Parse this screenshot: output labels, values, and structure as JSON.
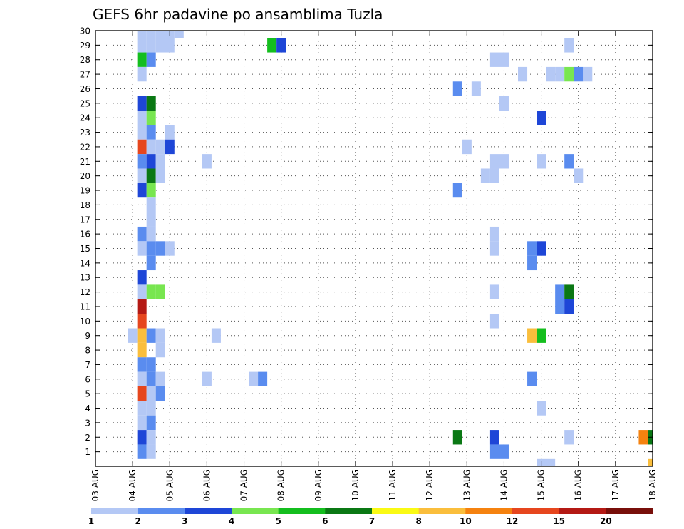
{
  "chart_data": {
    "type": "heatmap",
    "title": "GEFS 6hr padavine po ansamblima Tuzla",
    "xlabel": "",
    "ylabel": "",
    "x_tick_labels": [
      "03 AUG",
      "04 AUG",
      "05 AUG",
      "06 AUG",
      "07 AUG",
      "08 AUG",
      "09 AUG",
      "10 AUG",
      "11 AUG",
      "12 AUG",
      "13 AUG",
      "14 AUG",
      "15 AUG",
      "16 AUG",
      "17 AUG",
      "18 AUG"
    ],
    "y_tick_labels": [
      "1",
      "2",
      "3",
      "4",
      "5",
      "6",
      "7",
      "8",
      "9",
      "10",
      "11",
      "12",
      "13",
      "14",
      "15",
      "16",
      "17",
      "18",
      "19",
      "20",
      "21",
      "22",
      "23",
      "24",
      "25",
      "26",
      "27",
      "28",
      "29",
      "30"
    ],
    "xlim_hours": [
      0,
      360
    ],
    "ylim_member": [
      0,
      30
    ],
    "grid": true,
    "colorbar": {
      "labels": [
        "1",
        "2",
        "3",
        "4",
        "5",
        "6",
        "7",
        "8",
        "10",
        "12",
        "15",
        "20"
      ],
      "colors": [
        "#b4c8f5",
        "#5a8cef",
        "#1e46d7",
        "#78e650",
        "#14be1e",
        "#0a7814",
        "#fafa14",
        "#fabe3c",
        "#f5820f",
        "#e6461e",
        "#b41914",
        "#780f0a"
      ]
    },
    "cell_fields": [
      "hour",
      "member",
      "color_index"
    ],
    "cells": [
      [
        30,
        30,
        0
      ],
      [
        36,
        30,
        0
      ],
      [
        42,
        30,
        0
      ],
      [
        48,
        30,
        0
      ],
      [
        54,
        30,
        0
      ],
      [
        30,
        29,
        0
      ],
      [
        36,
        29,
        0
      ],
      [
        42,
        29,
        0
      ],
      [
        48,
        29,
        0
      ],
      [
        114,
        29,
        4
      ],
      [
        120,
        29,
        2
      ],
      [
        306,
        29,
        0
      ],
      [
        30,
        28,
        4
      ],
      [
        36,
        28,
        1
      ],
      [
        258,
        28,
        0
      ],
      [
        264,
        28,
        0
      ],
      [
        30,
        27,
        0
      ],
      [
        276,
        27,
        0
      ],
      [
        294,
        27,
        0
      ],
      [
        300,
        27,
        0
      ],
      [
        306,
        27,
        3
      ],
      [
        312,
        27,
        1
      ],
      [
        318,
        27,
        0
      ],
      [
        234,
        26,
        1
      ],
      [
        246,
        26,
        0
      ],
      [
        30,
        25,
        2
      ],
      [
        36,
        25,
        5
      ],
      [
        264,
        25,
        0
      ],
      [
        30,
        24,
        0
      ],
      [
        36,
        24,
        3
      ],
      [
        288,
        24,
        2
      ],
      [
        30,
        23,
        0
      ],
      [
        36,
        23,
        1
      ],
      [
        48,
        23,
        0
      ],
      [
        30,
        22,
        9
      ],
      [
        36,
        22,
        0
      ],
      [
        42,
        22,
        0
      ],
      [
        48,
        22,
        2
      ],
      [
        240,
        22,
        0
      ],
      [
        30,
        21,
        1
      ],
      [
        36,
        21,
        2
      ],
      [
        42,
        21,
        0
      ],
      [
        72,
        21,
        0
      ],
      [
        258,
        21,
        0
      ],
      [
        264,
        21,
        0
      ],
      [
        288,
        21,
        0
      ],
      [
        306,
        21,
        1
      ],
      [
        30,
        20,
        0
      ],
      [
        36,
        20,
        5
      ],
      [
        42,
        20,
        0
      ],
      [
        252,
        20,
        0
      ],
      [
        258,
        20,
        0
      ],
      [
        312,
        20,
        0
      ],
      [
        30,
        19,
        2
      ],
      [
        36,
        19,
        3
      ],
      [
        234,
        19,
        1
      ],
      [
        36,
        18,
        0
      ],
      [
        36,
        17,
        0
      ],
      [
        30,
        16,
        1
      ],
      [
        36,
        16,
        0
      ],
      [
        258,
        16,
        0
      ],
      [
        30,
        15,
        0
      ],
      [
        36,
        15,
        1
      ],
      [
        42,
        15,
        1
      ],
      [
        48,
        15,
        0
      ],
      [
        258,
        15,
        0
      ],
      [
        282,
        15,
        1
      ],
      [
        288,
        15,
        2
      ],
      [
        36,
        14,
        1
      ],
      [
        282,
        14,
        1
      ],
      [
        30,
        13,
        2
      ],
      [
        30,
        12,
        0
      ],
      [
        36,
        12,
        3
      ],
      [
        42,
        12,
        3
      ],
      [
        258,
        12,
        0
      ],
      [
        300,
        12,
        1
      ],
      [
        306,
        12,
        5
      ],
      [
        30,
        11,
        10
      ],
      [
        300,
        11,
        1
      ],
      [
        306,
        11,
        2
      ],
      [
        30,
        10,
        9
      ],
      [
        258,
        10,
        0
      ],
      [
        24,
        9,
        0
      ],
      [
        30,
        9,
        7
      ],
      [
        36,
        9,
        1
      ],
      [
        42,
        9,
        0
      ],
      [
        78,
        9,
        0
      ],
      [
        282,
        9,
        7
      ],
      [
        288,
        9,
        4
      ],
      [
        30,
        8,
        7
      ],
      [
        42,
        8,
        0
      ],
      [
        30,
        7,
        1
      ],
      [
        36,
        7,
        1
      ],
      [
        30,
        6,
        0
      ],
      [
        36,
        6,
        1
      ],
      [
        42,
        6,
        0
      ],
      [
        72,
        6,
        0
      ],
      [
        102,
        6,
        0
      ],
      [
        108,
        6,
        1
      ],
      [
        282,
        6,
        1
      ],
      [
        30,
        5,
        9
      ],
      [
        36,
        5,
        0
      ],
      [
        42,
        5,
        1
      ],
      [
        30,
        4,
        0
      ],
      [
        36,
        4,
        0
      ],
      [
        288,
        4,
        0
      ],
      [
        30,
        3,
        0
      ],
      [
        36,
        3,
        1
      ],
      [
        30,
        2,
        2
      ],
      [
        36,
        2,
        0
      ],
      [
        234,
        2,
        5
      ],
      [
        258,
        2,
        2
      ],
      [
        306,
        2,
        0
      ],
      [
        354,
        2,
        8
      ],
      [
        360,
        2,
        5
      ],
      [
        30,
        1,
        1
      ],
      [
        36,
        1,
        0
      ],
      [
        258,
        1,
        1
      ],
      [
        264,
        1,
        1
      ],
      [
        288,
        0,
        0
      ],
      [
        294,
        0,
        0
      ],
      [
        360,
        0,
        7
      ]
    ]
  }
}
